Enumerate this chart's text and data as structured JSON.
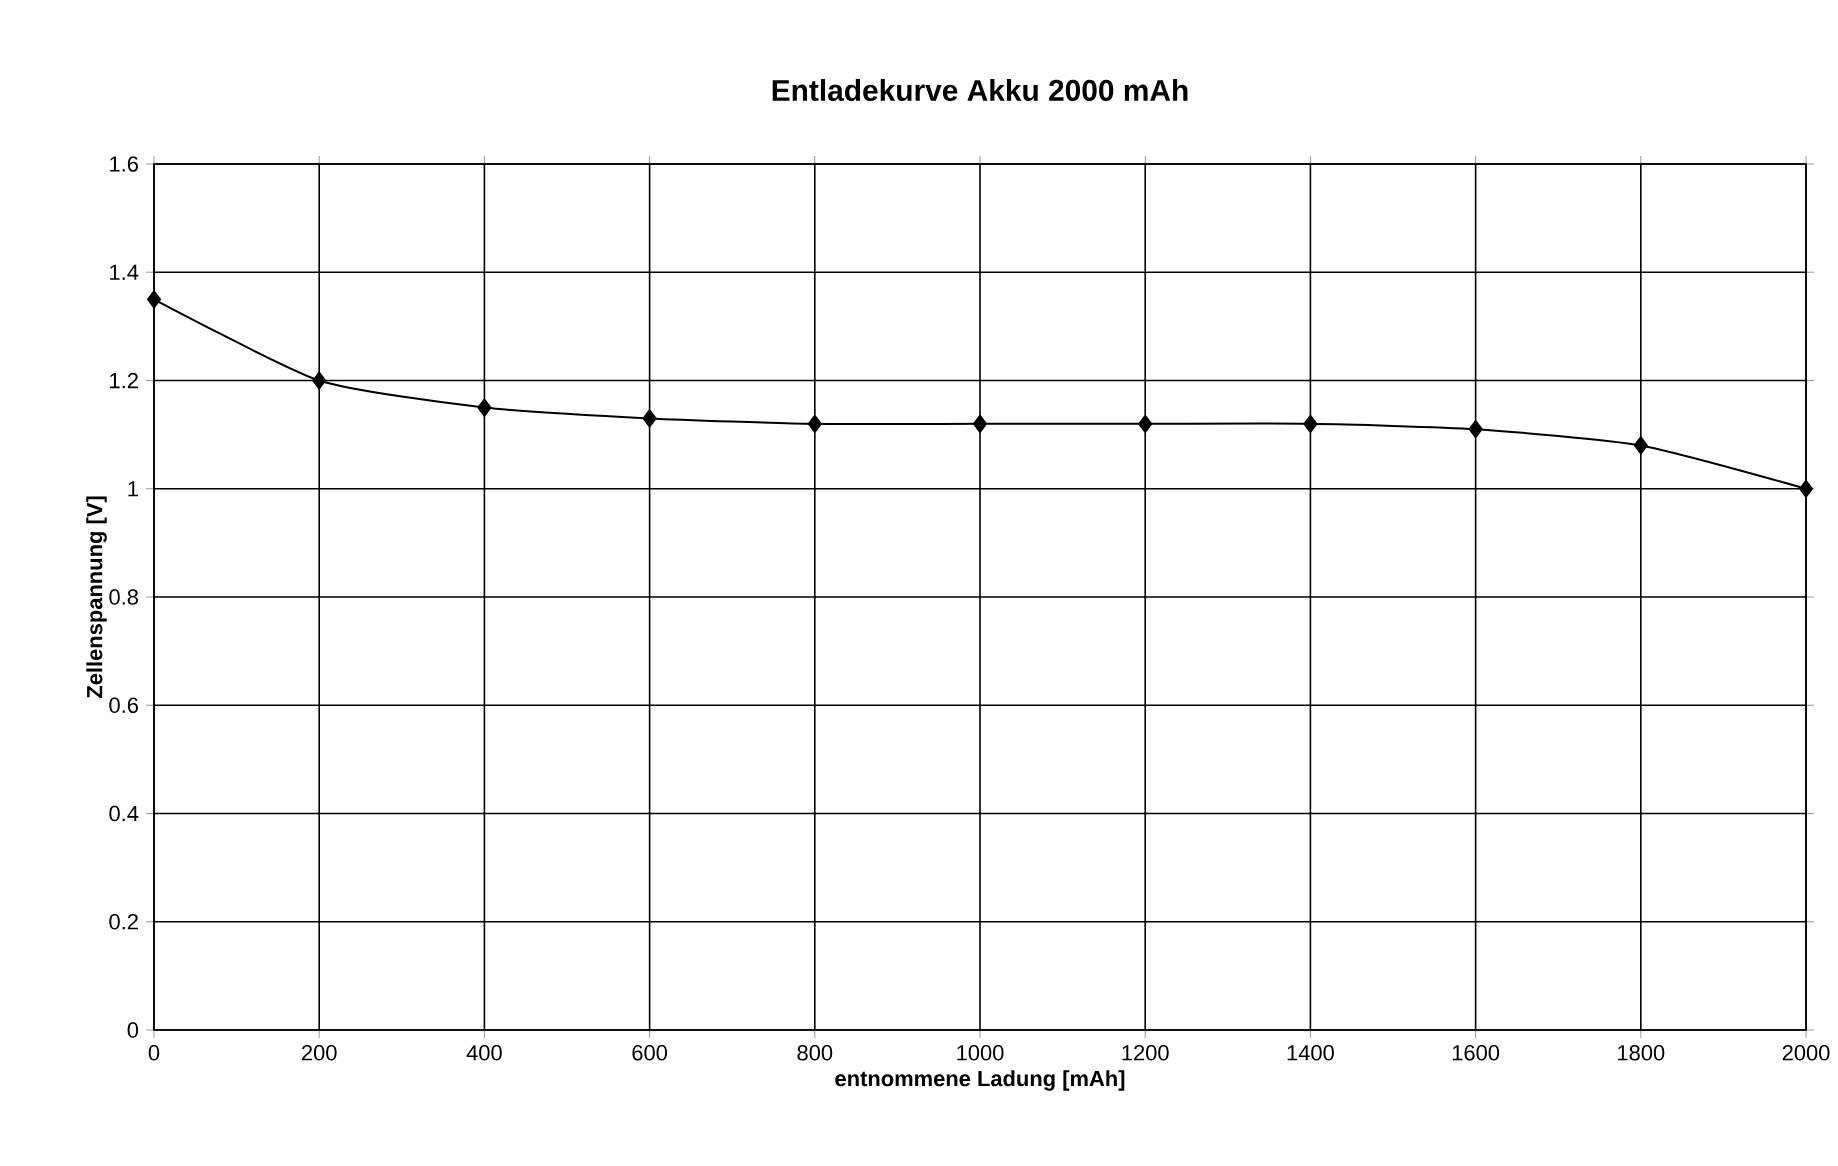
{
  "chart_data": {
    "type": "line",
    "title": "Entladekurve Akku 2000 mAh",
    "xlabel": "entnommene Ladung [mAh]",
    "ylabel": "Zellenspannung [V]",
    "x": [
      0,
      200,
      400,
      600,
      800,
      1000,
      1200,
      1400,
      1600,
      1800,
      2000
    ],
    "series": [
      {
        "color": "#000000",
        "values": [
          1.35,
          1.2,
          1.15,
          1.13,
          1.12,
          1.12,
          1.12,
          1.12,
          1.11,
          1.08,
          1.0
        ]
      }
    ],
    "xlim": [
      0,
      2000
    ],
    "ylim": [
      0,
      1.6
    ],
    "xticks": [
      0,
      200,
      400,
      600,
      800,
      1000,
      1200,
      1400,
      1600,
      1800,
      2000
    ],
    "yticks": [
      0,
      0.2,
      0.4,
      0.6,
      0.8,
      1,
      1.2,
      1.4,
      1.6
    ],
    "grid": true,
    "marker": "diamond",
    "line_style": "solid"
  }
}
